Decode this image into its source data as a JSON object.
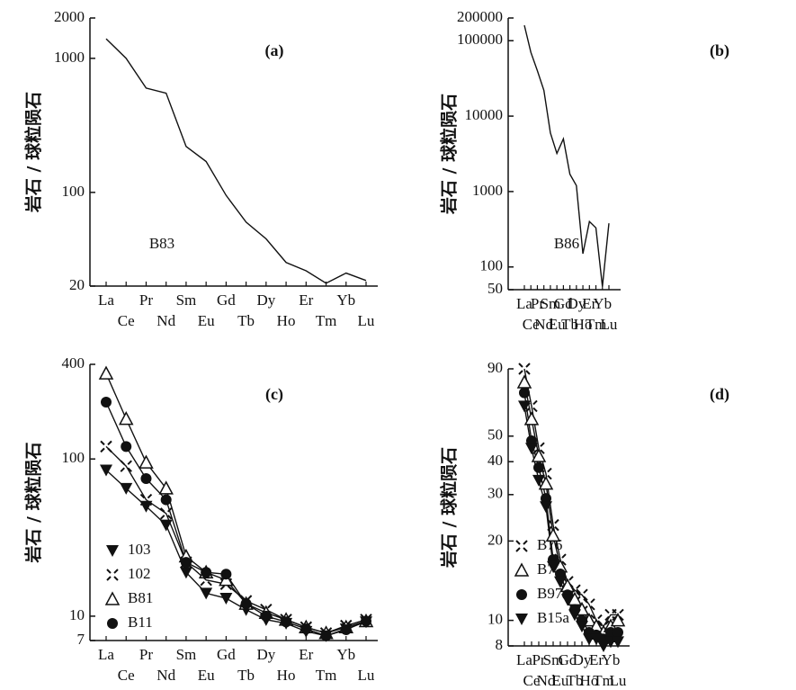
{
  "chart_data": [
    {
      "type": "line",
      "title": "(a)",
      "y_label": "岩石 / 球粒陨石",
      "annotation": "B83",
      "log_y": true,
      "color": "#111111",
      "categories": [
        "La",
        "Ce",
        "Pr",
        "Nd",
        "Sm",
        "Eu",
        "Gd",
        "Tb",
        "Dy",
        "Ho",
        "Er",
        "Tm",
        "Yb",
        "Lu"
      ],
      "values": [
        1400,
        1000,
        600,
        550,
        220,
        170,
        95,
        60,
        45,
        30,
        26,
        21,
        25,
        22
      ],
      "ylim": [
        20,
        2000
      ],
      "yticks": [
        2000,
        1000,
        100,
        20
      ]
    },
    {
      "type": "line",
      "title": "(b)",
      "y_label": "岩石 / 球粒陨石",
      "annotation": "B86",
      "log_y": true,
      "color": "#111111",
      "categories": [
        "La",
        "Ce",
        "Pr",
        "Nd",
        "Sm",
        "Eu",
        "Gd",
        "Tb",
        "Dy",
        "Ho",
        "Er",
        "Tm",
        "Yb",
        "Lu"
      ],
      "values": [
        160000,
        70000,
        40000,
        22000,
        6000,
        3200,
        5000,
        1700,
        1200,
        150,
        400,
        330,
        55,
        380
      ],
      "ylim": [
        50,
        200000
      ],
      "yticks": [
        200000,
        100000,
        10000,
        1000,
        100,
        50
      ]
    },
    {
      "type": "line",
      "title": "(c)",
      "y_label": "岩石 / 球粒陨石",
      "log_y": true,
      "legend": "lower-left",
      "categories": [
        "La",
        "Ce",
        "Pr",
        "Nd",
        "Sm",
        "Eu",
        "Gd",
        "Tb",
        "Dy",
        "Ho",
        "Er",
        "Tm",
        "Yb",
        "Lu"
      ],
      "series": [
        {
          "name": "103",
          "color": "#111111",
          "marker": "triangle-down-filled",
          "values": [
            85,
            65,
            50,
            38,
            19,
            14,
            13,
            11,
            9.5,
            9,
            8,
            7.5,
            8.3,
            9.2
          ]
        },
        {
          "name": "102",
          "color": "#111111",
          "marker": "cross",
          "values": [
            120,
            90,
            55,
            45,
            22,
            17,
            16,
            12.5,
            11,
            9.5,
            8.5,
            7.8,
            8.7,
            9.5
          ]
        },
        {
          "name": "B81",
          "color": "#111111",
          "marker": "triangle-open",
          "values": [
            350,
            180,
            95,
            65,
            24,
            19,
            17,
            12,
            10.5,
            9.5,
            8.5,
            7.8,
            8.5,
            9.3
          ]
        },
        {
          "name": "B11",
          "color": "#111111",
          "marker": "circle-filled",
          "values": [
            230,
            120,
            75,
            55,
            22,
            19,
            18.5,
            12,
            10,
            9.2,
            8.3,
            7.5,
            8.2,
            9.3
          ]
        }
      ],
      "ylim": [
        7,
        400
      ],
      "yticks": [
        400,
        100,
        10,
        7
      ]
    },
    {
      "type": "line",
      "title": "(d)",
      "y_label": "岩石 / 球粒陨石",
      "log_y": true,
      "legend": "lower-left",
      "categories": [
        "La",
        "Ce",
        "Pr",
        "Nd",
        "Sm",
        "Eu",
        "Gd",
        "Tb",
        "Dy",
        "Ho",
        "Er",
        "Tm",
        "Yb",
        "Lu"
      ],
      "series": [
        {
          "name": "B76",
          "color": "#111111",
          "marker": "cross",
          "values": [
            90,
            65,
            45,
            36,
            23,
            17,
            14,
            13,
            12.5,
            11.5,
            10,
            9.5,
            10.5,
            10.5
          ]
        },
        {
          "name": "B74",
          "color": "#111111",
          "marker": "triangle-open",
          "values": [
            80,
            58,
            42,
            33,
            21,
            16,
            13.5,
            12,
            11,
            10,
            9.5,
            9,
            9.5,
            10
          ]
        },
        {
          "name": "B97",
          "color": "#111111",
          "marker": "circle-filled",
          "values": [
            73,
            48,
            38,
            29,
            17,
            15,
            12.5,
            11,
            10,
            9,
            8.8,
            8.5,
            9,
            9
          ]
        },
        {
          "name": "B15a",
          "color": "#111111",
          "marker": "triangle-down-filled",
          "values": [
            65,
            45,
            34,
            27,
            16,
            14,
            12,
            10.5,
            9.5,
            8.5,
            8.5,
            8,
            8.3,
            8.3
          ]
        }
      ],
      "ylim": [
        8,
        90
      ],
      "yticks": [
        90,
        50,
        40,
        30,
        20,
        10,
        8
      ]
    }
  ]
}
